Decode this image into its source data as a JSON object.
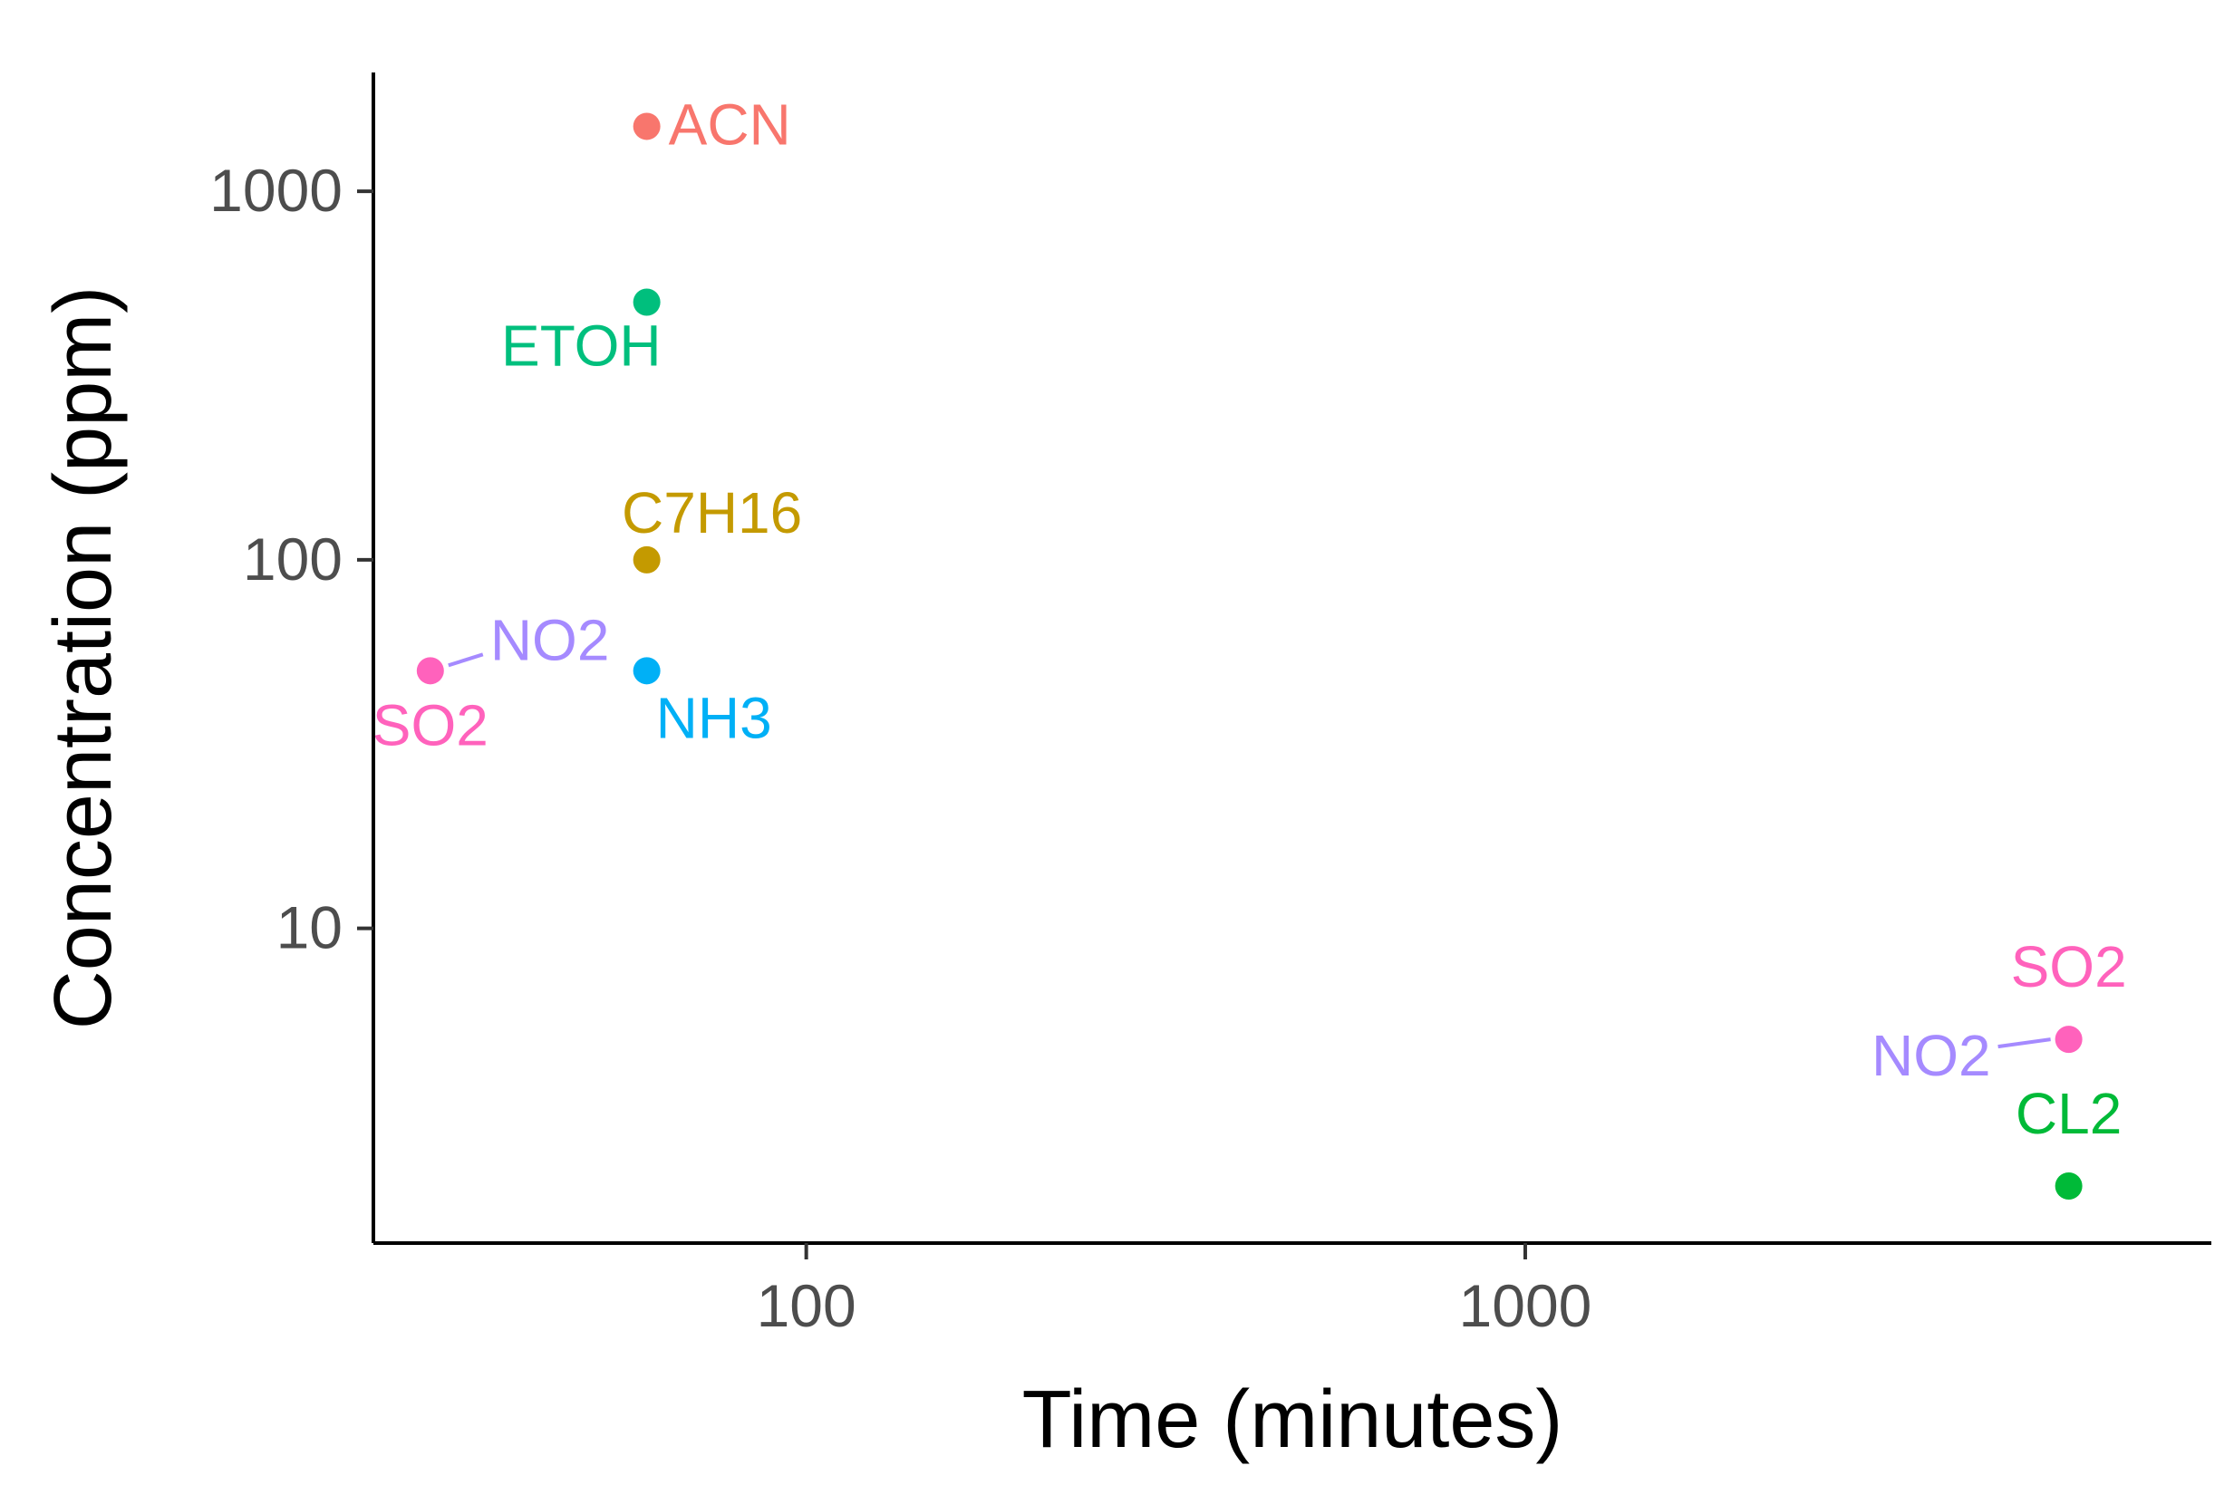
{
  "chart_data": {
    "type": "scatter",
    "xlabel": "Time (minutes)",
    "ylabel": "Concentration (ppm)",
    "x_scale": "log",
    "y_scale": "log",
    "xlim": [
      25,
      9000
    ],
    "ylim": [
      1.4,
      2100
    ],
    "x_ticks": [
      100,
      1000
    ],
    "x_tick_labels": [
      "100",
      "1000"
    ],
    "y_ticks": [
      10,
      100,
      1000
    ],
    "y_tick_labels": [
      "10",
      "100",
      "1000"
    ],
    "grid": false,
    "legend": "none",
    "points": [
      {
        "label": "ACN",
        "x": 60,
        "y": 1500,
        "color": "#F8766D",
        "label_pos": "right"
      },
      {
        "label": "ETOH",
        "x": 60,
        "y": 500,
        "color": "#00BF7D",
        "label_pos": "below-left"
      },
      {
        "label": "C7H16",
        "x": 60,
        "y": 100,
        "color": "#C49A00",
        "label_pos": "above-right"
      },
      {
        "label": "NH3",
        "x": 60,
        "y": 50,
        "color": "#00B0F6",
        "label_pos": "below-right"
      },
      {
        "label": "SO2",
        "x": 30,
        "y": 50,
        "color": "#FF62BC",
        "label_pos": "below"
      },
      {
        "label": "NO2",
        "x": 30,
        "y": 50,
        "color": "#A58AFF",
        "label_pos": "above-right-leader"
      },
      {
        "label": "SO2",
        "x": 5700,
        "y": 5,
        "color": "#FF62BC",
        "label_pos": "above"
      },
      {
        "label": "NO2",
        "x": 5700,
        "y": 5,
        "color": "#A58AFF",
        "label_pos": "left-leader"
      },
      {
        "label": "CL2",
        "x": 5700,
        "y": 2,
        "color": "#00BA38",
        "label_pos": "above"
      }
    ]
  }
}
